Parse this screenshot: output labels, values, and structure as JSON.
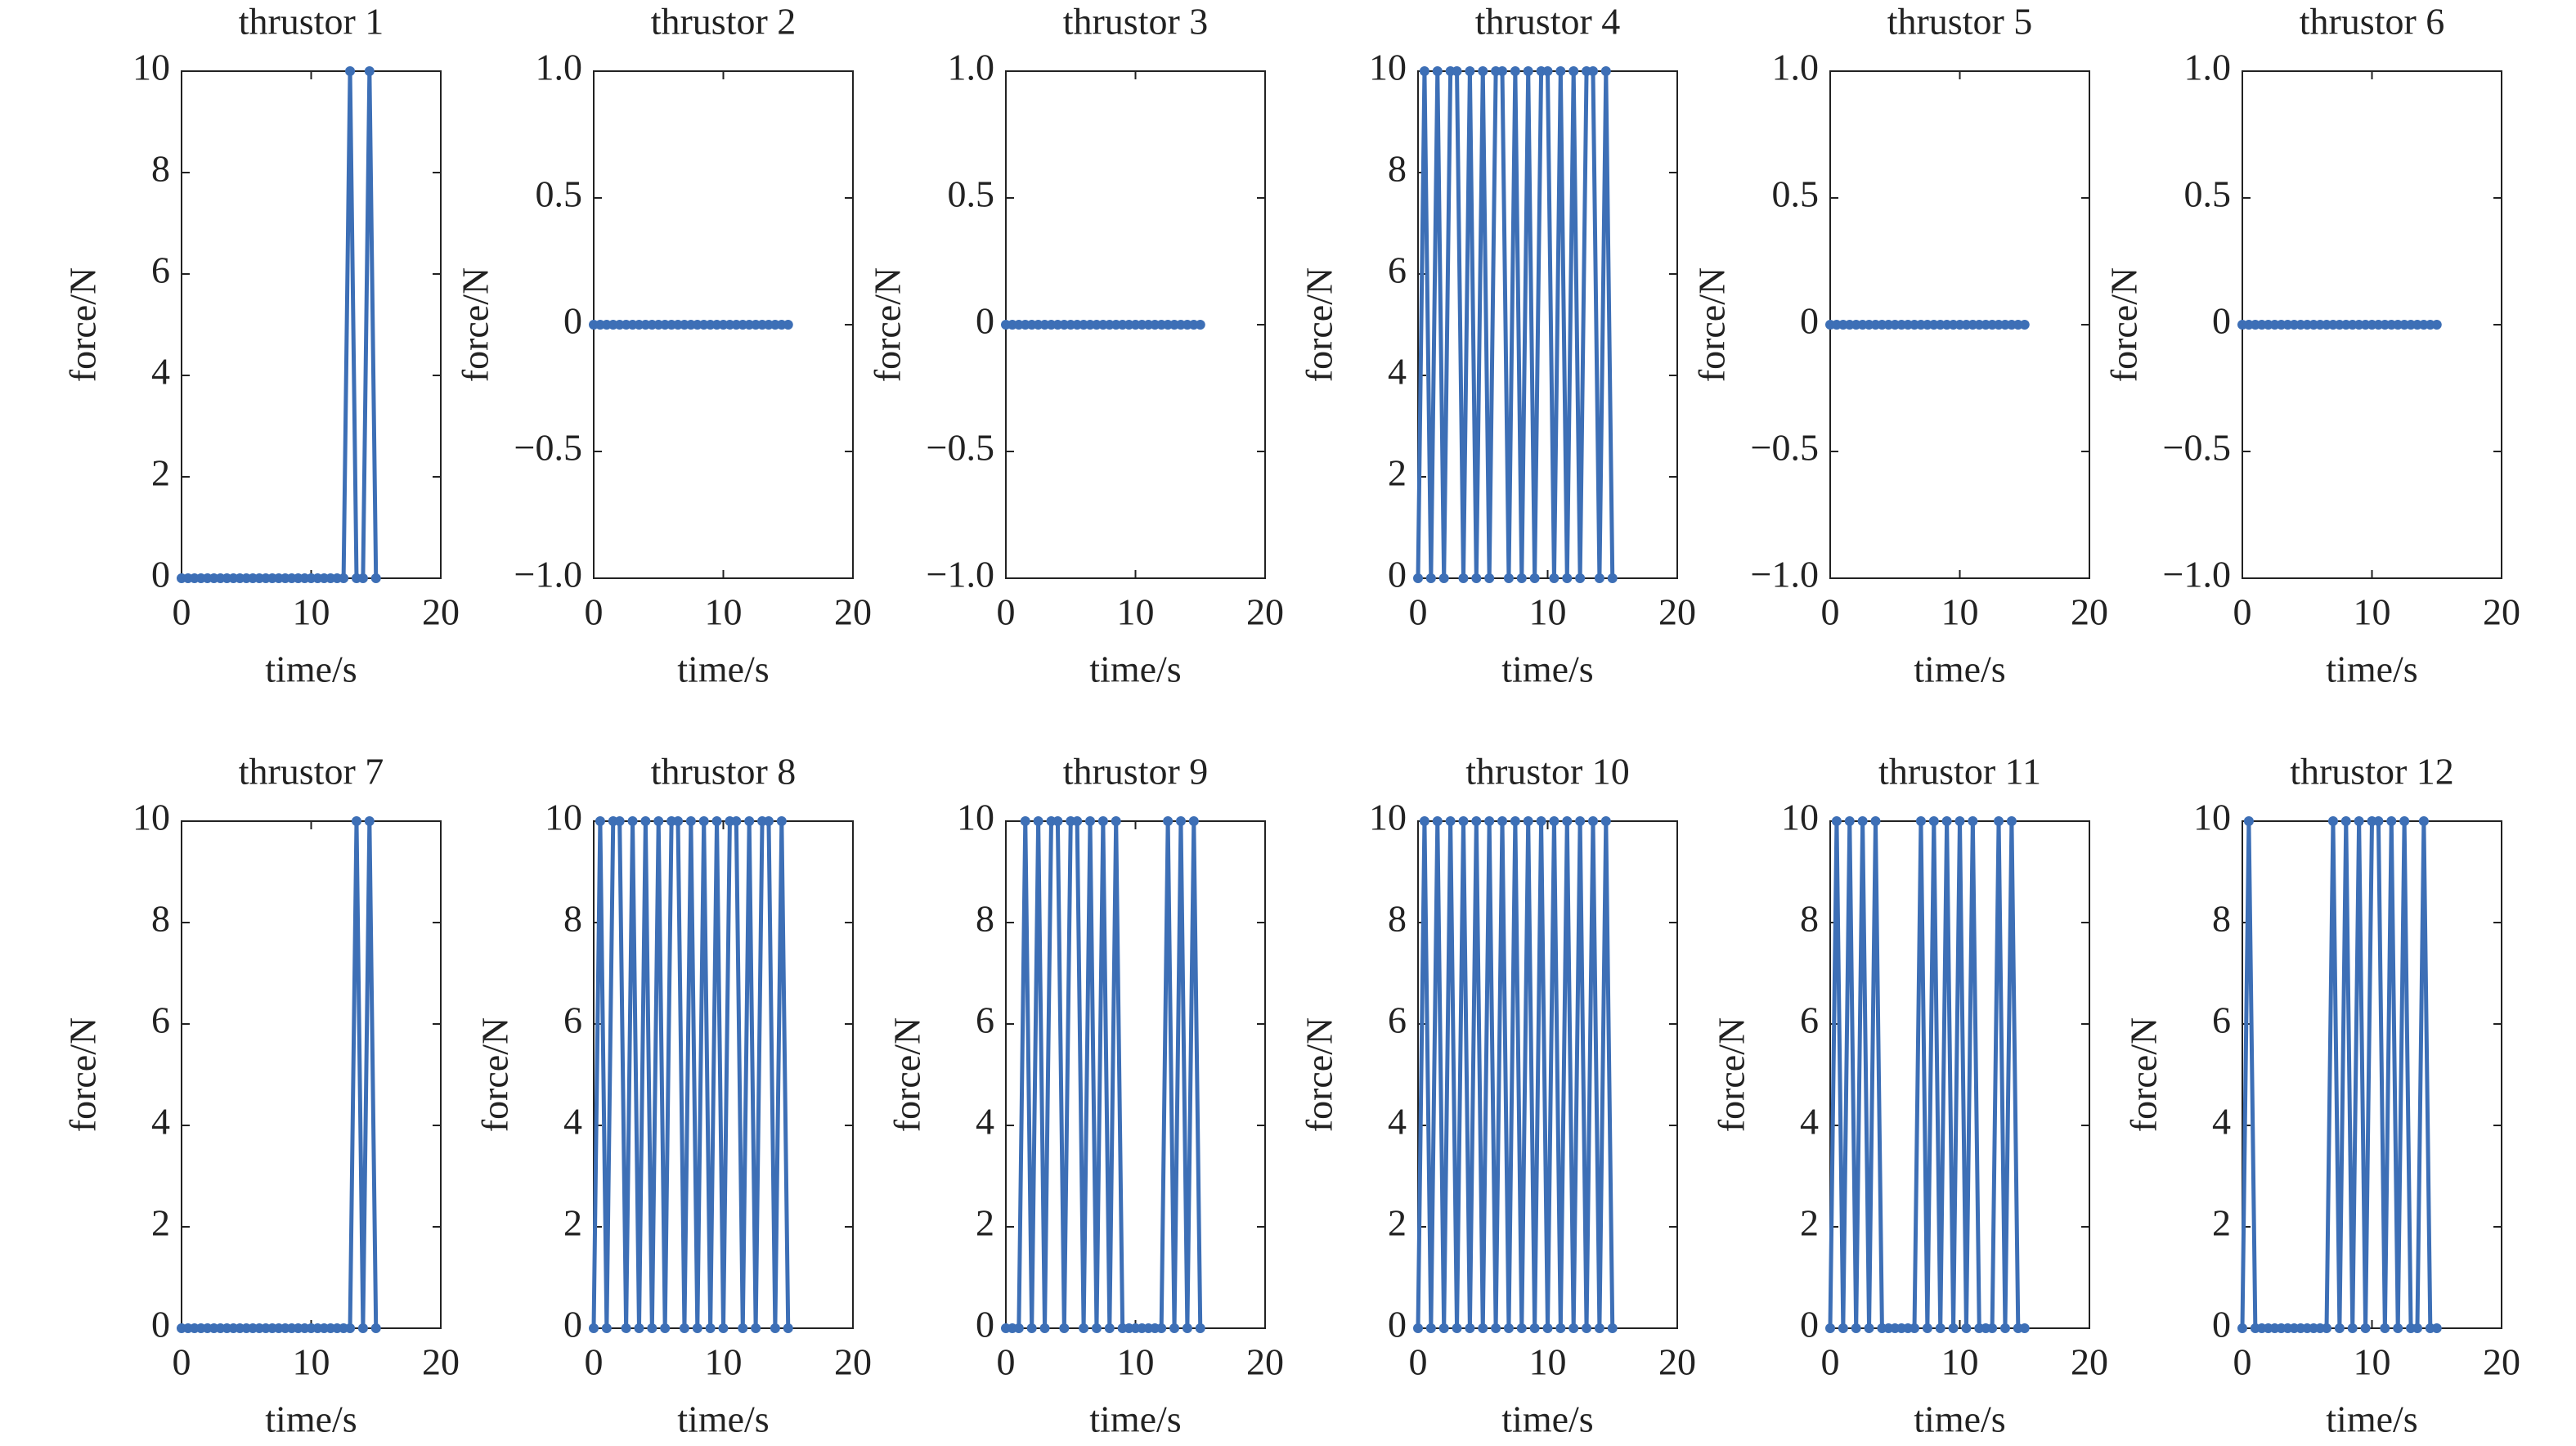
{
  "chart_data": [
    {
      "type": "line",
      "title": "thrustor 1",
      "xlabel": "time/s",
      "ylabel": "force/N",
      "color": "#3d6fb6",
      "xlim": [
        0,
        20
      ],
      "xticks": [
        0,
        10,
        20
      ],
      "ylim": [
        0,
        10
      ],
      "yticks": [
        0,
        2,
        4,
        6,
        8,
        10
      ],
      "x": [
        0,
        0.5,
        1,
        1.5,
        2,
        2.5,
        3,
        3.5,
        4,
        4.5,
        5,
        5.5,
        6,
        6.5,
        7,
        7.5,
        8,
        8.5,
        9,
        9.5,
        10,
        10.5,
        11,
        11.5,
        12,
        12.5,
        13,
        13.5,
        14,
        14.5,
        15
      ],
      "values": [
        0,
        0,
        0,
        0,
        0,
        0,
        0,
        0,
        0,
        0,
        0,
        0,
        0,
        0,
        0,
        0,
        0,
        0,
        0,
        0,
        0,
        0,
        0,
        0,
        0,
        0,
        10,
        0,
        0,
        10,
        0
      ]
    },
    {
      "type": "line",
      "title": "thrustor 2",
      "xlabel": "time/s",
      "ylabel": "force/N",
      "color": "#3d6fb6",
      "xlim": [
        0,
        20
      ],
      "xticks": [
        0,
        10,
        20
      ],
      "ylim": [
        -1,
        1
      ],
      "yticks": [
        {
          "value": -1,
          "label": "−1.0"
        },
        {
          "value": -0.5,
          "label": "−0.5"
        },
        0,
        {
          "value": 0.5,
          "label": "0.5"
        },
        {
          "value": 1,
          "label": "1.0"
        }
      ],
      "x": [
        0,
        0.5,
        1,
        1.5,
        2,
        2.5,
        3,
        3.5,
        4,
        4.5,
        5,
        5.5,
        6,
        6.5,
        7,
        7.5,
        8,
        8.5,
        9,
        9.5,
        10,
        10.5,
        11,
        11.5,
        12,
        12.5,
        13,
        13.5,
        14,
        14.5,
        15
      ],
      "values": [
        0,
        0,
        0,
        0,
        0,
        0,
        0,
        0,
        0,
        0,
        0,
        0,
        0,
        0,
        0,
        0,
        0,
        0,
        0,
        0,
        0,
        0,
        0,
        0,
        0,
        0,
        0,
        0,
        0,
        0,
        0
      ]
    },
    {
      "type": "line",
      "title": "thrustor 3",
      "xlabel": "time/s",
      "ylabel": "force/N",
      "color": "#3d6fb6",
      "xlim": [
        0,
        20
      ],
      "xticks": [
        0,
        10,
        20
      ],
      "ylim": [
        -1,
        1
      ],
      "yticks": [
        {
          "value": -1,
          "label": "−1.0"
        },
        {
          "value": -0.5,
          "label": "−0.5"
        },
        0,
        {
          "value": 0.5,
          "label": "0.5"
        },
        {
          "value": 1,
          "label": "1.0"
        }
      ],
      "x": [
        0,
        0.5,
        1,
        1.5,
        2,
        2.5,
        3,
        3.5,
        4,
        4.5,
        5,
        5.5,
        6,
        6.5,
        7,
        7.5,
        8,
        8.5,
        9,
        9.5,
        10,
        10.5,
        11,
        11.5,
        12,
        12.5,
        13,
        13.5,
        14,
        14.5,
        15
      ],
      "values": [
        0,
        0,
        0,
        0,
        0,
        0,
        0,
        0,
        0,
        0,
        0,
        0,
        0,
        0,
        0,
        0,
        0,
        0,
        0,
        0,
        0,
        0,
        0,
        0,
        0,
        0,
        0,
        0,
        0,
        0,
        0
      ]
    },
    {
      "type": "line",
      "title": "thrustor 4",
      "xlabel": "time/s",
      "ylabel": "force/N",
      "color": "#3d6fb6",
      "xlim": [
        0,
        20
      ],
      "xticks": [
        0,
        10,
        20
      ],
      "ylim": [
        0,
        10
      ],
      "yticks": [
        0,
        2,
        4,
        6,
        8,
        10
      ],
      "x": [
        0,
        0.5,
        1,
        1.5,
        2,
        2.5,
        3,
        3.5,
        4,
        4.5,
        5,
        5.5,
        6,
        6.5,
        7,
        7.5,
        8,
        8.5,
        9,
        9.5,
        10,
        10.5,
        11,
        11.5,
        12,
        12.5,
        13,
        13.5,
        14,
        14.5,
        15
      ],
      "values": [
        0,
        10,
        0,
        10,
        0,
        10,
        10,
        0,
        10,
        0,
        10,
        0,
        10,
        10,
        0,
        10,
        0,
        10,
        0,
        10,
        10,
        0,
        10,
        0,
        10,
        0,
        10,
        10,
        0,
        10,
        0
      ]
    },
    {
      "type": "line",
      "title": "thrustor 5",
      "xlabel": "time/s",
      "ylabel": "force/N",
      "color": "#3d6fb6",
      "xlim": [
        0,
        20
      ],
      "xticks": [
        0,
        10,
        20
      ],
      "ylim": [
        -1,
        1
      ],
      "yticks": [
        {
          "value": -1,
          "label": "−1.0"
        },
        {
          "value": -0.5,
          "label": "−0.5"
        },
        0,
        {
          "value": 0.5,
          "label": "0.5"
        },
        {
          "value": 1,
          "label": "1.0"
        }
      ],
      "x": [
        0,
        0.5,
        1,
        1.5,
        2,
        2.5,
        3,
        3.5,
        4,
        4.5,
        5,
        5.5,
        6,
        6.5,
        7,
        7.5,
        8,
        8.5,
        9,
        9.5,
        10,
        10.5,
        11,
        11.5,
        12,
        12.5,
        13,
        13.5,
        14,
        14.5,
        15
      ],
      "values": [
        0,
        0,
        0,
        0,
        0,
        0,
        0,
        0,
        0,
        0,
        0,
        0,
        0,
        0,
        0,
        0,
        0,
        0,
        0,
        0,
        0,
        0,
        0,
        0,
        0,
        0,
        0,
        0,
        0,
        0,
        0
      ]
    },
    {
      "type": "line",
      "title": "thrustor 6",
      "xlabel": "time/s",
      "ylabel": "force/N",
      "color": "#3d6fb6",
      "xlim": [
        0,
        20
      ],
      "xticks": [
        0,
        10,
        20
      ],
      "ylim": [
        -1,
        1
      ],
      "yticks": [
        {
          "value": -1,
          "label": "−1.0"
        },
        {
          "value": -0.5,
          "label": "−0.5"
        },
        0,
        {
          "value": 0.5,
          "label": "0.5"
        },
        {
          "value": 1,
          "label": "1.0"
        }
      ],
      "x": [
        0,
        0.5,
        1,
        1.5,
        2,
        2.5,
        3,
        3.5,
        4,
        4.5,
        5,
        5.5,
        6,
        6.5,
        7,
        7.5,
        8,
        8.5,
        9,
        9.5,
        10,
        10.5,
        11,
        11.5,
        12,
        12.5,
        13,
        13.5,
        14,
        14.5,
        15
      ],
      "values": [
        0,
        0,
        0,
        0,
        0,
        0,
        0,
        0,
        0,
        0,
        0,
        0,
        0,
        0,
        0,
        0,
        0,
        0,
        0,
        0,
        0,
        0,
        0,
        0,
        0,
        0,
        0,
        0,
        0,
        0,
        0
      ]
    },
    {
      "type": "line",
      "title": "thrustor 7",
      "xlabel": "time/s",
      "ylabel": "force/N",
      "color": "#3d6fb6",
      "xlim": [
        0,
        20
      ],
      "xticks": [
        0,
        10,
        20
      ],
      "ylim": [
        0,
        10
      ],
      "yticks": [
        0,
        2,
        4,
        6,
        8,
        10
      ],
      "x": [
        0,
        0.5,
        1,
        1.5,
        2,
        2.5,
        3,
        3.5,
        4,
        4.5,
        5,
        5.5,
        6,
        6.5,
        7,
        7.5,
        8,
        8.5,
        9,
        9.5,
        10,
        10.5,
        11,
        11.5,
        12,
        12.5,
        13,
        13.5,
        14,
        14.5,
        15
      ],
      "values": [
        0,
        0,
        0,
        0,
        0,
        0,
        0,
        0,
        0,
        0,
        0,
        0,
        0,
        0,
        0,
        0,
        0,
        0,
        0,
        0,
        0,
        0,
        0,
        0,
        0,
        0,
        0,
        10,
        0,
        10,
        0
      ]
    },
    {
      "type": "line",
      "title": "thrustor 8",
      "xlabel": "time/s",
      "ylabel": "force/N",
      "color": "#3d6fb6",
      "xlim": [
        0,
        20
      ],
      "xticks": [
        0,
        10,
        20
      ],
      "ylim": [
        0,
        10
      ],
      "yticks": [
        0,
        2,
        4,
        6,
        8,
        10
      ],
      "x": [
        0,
        0.5,
        1,
        1.5,
        2,
        2.5,
        3,
        3.5,
        4,
        4.5,
        5,
        5.5,
        6,
        6.5,
        7,
        7.5,
        8,
        8.5,
        9,
        9.5,
        10,
        10.5,
        11,
        11.5,
        12,
        12.5,
        13,
        13.5,
        14,
        14.5,
        15
      ],
      "values": [
        0,
        10,
        0,
        10,
        10,
        0,
        10,
        0,
        10,
        0,
        10,
        0,
        10,
        10,
        0,
        10,
        0,
        10,
        0,
        10,
        0,
        10,
        10,
        0,
        10,
        0,
        10,
        10,
        0,
        10,
        0
      ]
    },
    {
      "type": "line",
      "title": "thrustor 9",
      "xlabel": "time/s",
      "ylabel": "force/N",
      "color": "#3d6fb6",
      "xlim": [
        0,
        20
      ],
      "xticks": [
        0,
        10,
        20
      ],
      "ylim": [
        0,
        10
      ],
      "yticks": [
        0,
        2,
        4,
        6,
        8,
        10
      ],
      "x": [
        0,
        0.5,
        1,
        1.5,
        2,
        2.5,
        3,
        3.5,
        4,
        4.5,
        5,
        5.5,
        6,
        6.5,
        7,
        7.5,
        8,
        8.5,
        9,
        9.5,
        10,
        10.5,
        11,
        11.5,
        12,
        12.5,
        13,
        13.5,
        14,
        14.5,
        15
      ],
      "values": [
        0,
        0,
        0,
        10,
        0,
        10,
        0,
        10,
        10,
        0,
        10,
        10,
        0,
        10,
        0,
        10,
        0,
        10,
        0,
        0,
        0,
        0,
        0,
        0,
        0,
        10,
        0,
        10,
        0,
        10,
        0
      ]
    },
    {
      "type": "line",
      "title": "thrustor 10",
      "xlabel": "time/s",
      "ylabel": "force/N",
      "color": "#3d6fb6",
      "xlim": [
        0,
        20
      ],
      "xticks": [
        0,
        10,
        20
      ],
      "ylim": [
        0,
        10
      ],
      "yticks": [
        0,
        2,
        4,
        6,
        8,
        10
      ],
      "x": [
        0,
        0.5,
        1,
        1.5,
        2,
        2.5,
        3,
        3.5,
        4,
        4.5,
        5,
        5.5,
        6,
        6.5,
        7,
        7.5,
        8,
        8.5,
        9,
        9.5,
        10,
        10.5,
        11,
        11.5,
        12,
        12.5,
        13,
        13.5,
        14,
        14.5,
        15
      ],
      "values": [
        0,
        10,
        0,
        10,
        0,
        10,
        0,
        10,
        0,
        10,
        0,
        10,
        0,
        10,
        0,
        10,
        0,
        10,
        0,
        10,
        0,
        10,
        0,
        10,
        0,
        10,
        0,
        10,
        0,
        10,
        0
      ]
    },
    {
      "type": "line",
      "title": "thrustor 11",
      "xlabel": "time/s",
      "ylabel": "force/N",
      "color": "#3d6fb6",
      "xlim": [
        0,
        20
      ],
      "xticks": [
        0,
        10,
        20
      ],
      "ylim": [
        0,
        10
      ],
      "yticks": [
        0,
        2,
        4,
        6,
        8,
        10
      ],
      "x": [
        0,
        0.5,
        1,
        1.5,
        2,
        2.5,
        3,
        3.5,
        4,
        4.5,
        5,
        5.5,
        6,
        6.5,
        7,
        7.5,
        8,
        8.5,
        9,
        9.5,
        10,
        10.5,
        11,
        11.5,
        12,
        12.5,
        13,
        13.5,
        14,
        14.5,
        15
      ],
      "values": [
        0,
        10,
        0,
        10,
        0,
        10,
        0,
        10,
        0,
        0,
        0,
        0,
        0,
        0,
        10,
        0,
        10,
        0,
        10,
        0,
        10,
        0,
        10,
        0,
        0,
        0,
        10,
        0,
        10,
        0,
        0
      ]
    },
    {
      "type": "line",
      "title": "thrustor 12",
      "xlabel": "time/s",
      "ylabel": "force/N",
      "color": "#3d6fb6",
      "xlim": [
        0,
        20
      ],
      "xticks": [
        0,
        10,
        20
      ],
      "ylim": [
        0,
        10
      ],
      "yticks": [
        0,
        2,
        4,
        6,
        8,
        10
      ],
      "x": [
        0,
        0.5,
        1,
        1.5,
        2,
        2.5,
        3,
        3.5,
        4,
        4.5,
        5,
        5.5,
        6,
        6.5,
        7,
        7.5,
        8,
        8.5,
        9,
        9.5,
        10,
        10.5,
        11,
        11.5,
        12,
        12.5,
        13,
        13.5,
        14,
        14.5,
        15
      ],
      "values": [
        0,
        10,
        0,
        0,
        0,
        0,
        0,
        0,
        0,
        0,
        0,
        0,
        0,
        0,
        10,
        0,
        10,
        0,
        10,
        0,
        10,
        10,
        0,
        10,
        0,
        10,
        0,
        0,
        10,
        0,
        0
      ]
    }
  ]
}
